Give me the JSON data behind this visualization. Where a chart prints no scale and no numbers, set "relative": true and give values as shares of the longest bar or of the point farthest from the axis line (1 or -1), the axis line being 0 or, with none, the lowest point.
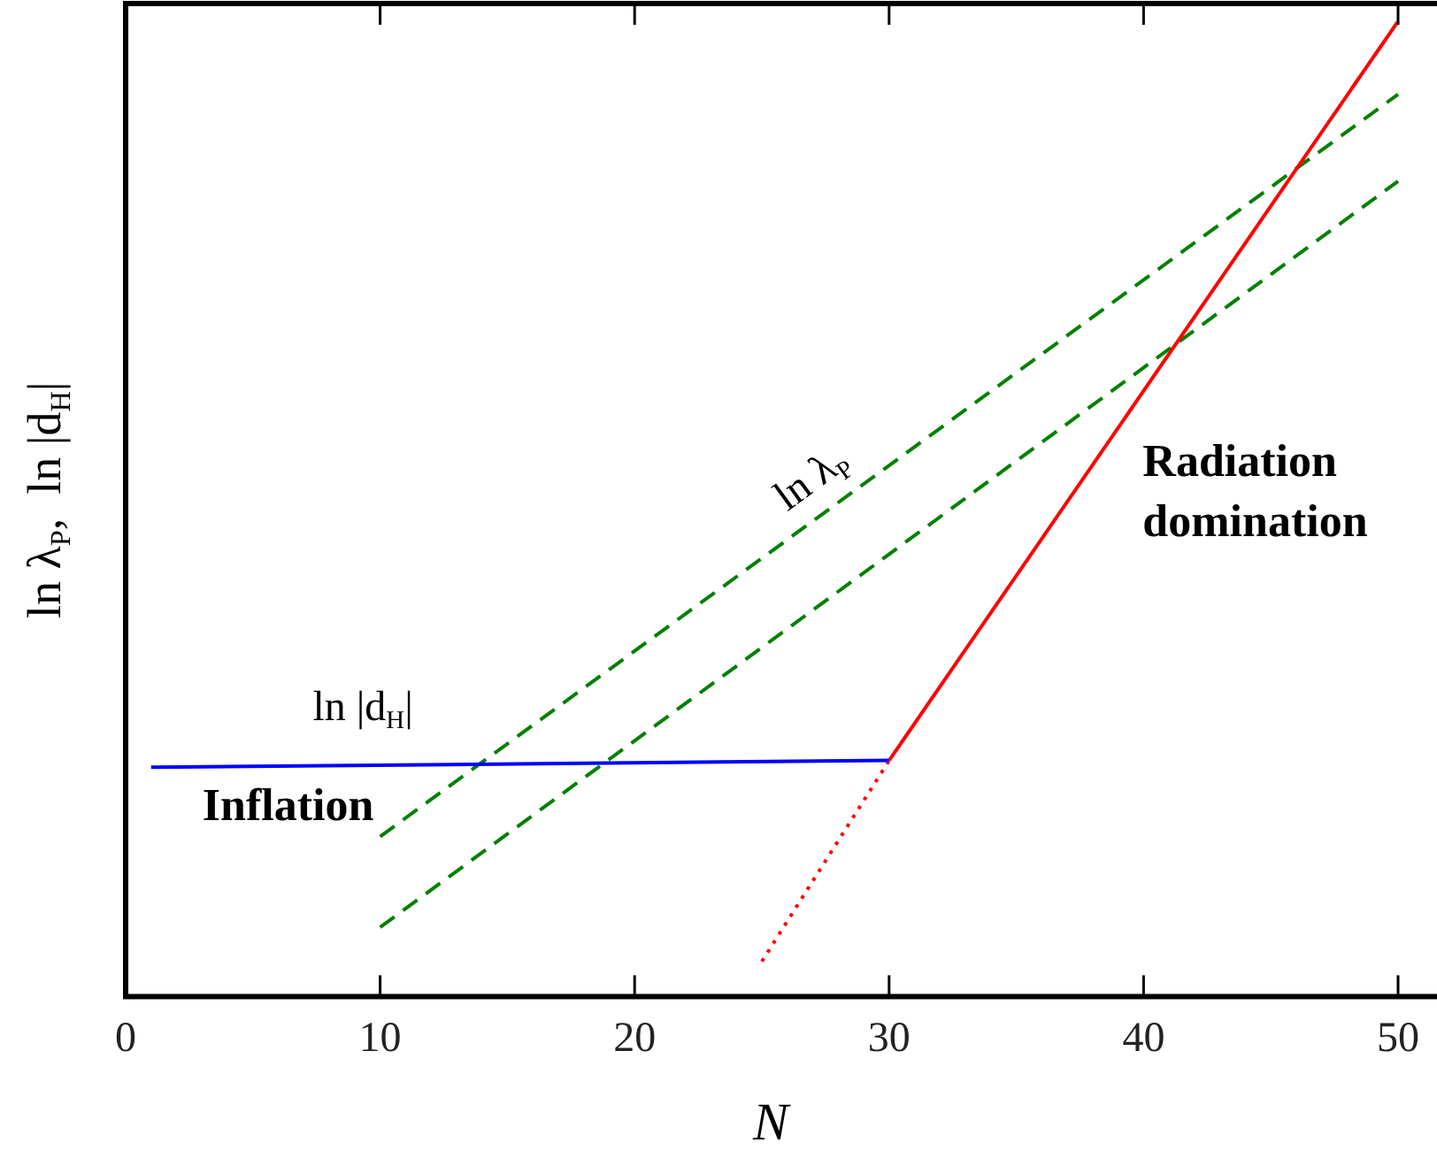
{
  "chart_data": {
    "type": "line",
    "relative": true,
    "xlabel": "N",
    "ylabel": "ln λ$_{P}$,  ln |d$_{H}$|",
    "xlim": [
      0,
      51.5
    ],
    "xticks": [
      0,
      10,
      20,
      30,
      40,
      50
    ],
    "grid": false,
    "legend": false,
    "marker": "none",
    "series": [
      {
        "color": "#0000ff",
        "line_style": "solid",
        "x": [
          1,
          30
        ],
        "values": [
          0.235,
          0.242
        ]
      },
      {
        "color": "#ff0000",
        "line_style": "solid",
        "x": [
          30,
          50
        ],
        "values": [
          0.242,
          1
        ]
      },
      {
        "color": "#ff0000",
        "line_style": "dotted",
        "x": [
          25,
          30
        ],
        "values": [
          0.036,
          0.242
        ]
      },
      {
        "color": "#008000",
        "line_style": "dashed",
        "x": [
          10,
          50
        ],
        "values": [
          0.164,
          0.925
        ]
      },
      {
        "color": "#008000",
        "line_style": "dashed",
        "x": [
          10,
          50
        ],
        "values": [
          0.071,
          0.836
        ]
      }
    ],
    "annotations": [
      "ln λ$_{P}$",
      "ln |d$_{H}$|",
      "Inflation",
      "Radiation domination"
    ]
  }
}
